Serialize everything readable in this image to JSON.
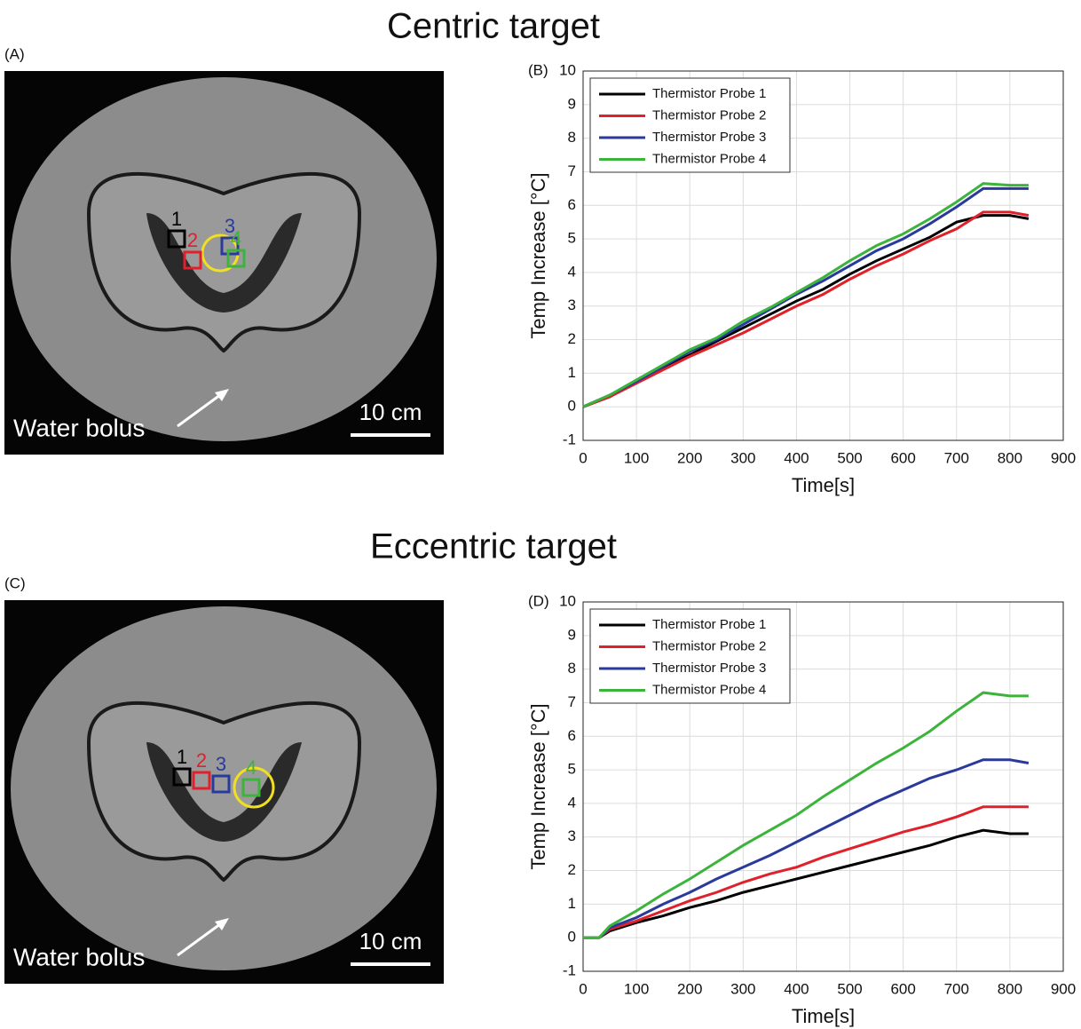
{
  "sections": [
    {
      "title": "Centric target",
      "image": {
        "panel_label": "(A)",
        "annotation": "Water bolus",
        "scale_bar": "10 cm",
        "probe_labels": [
          "1",
          "2",
          "3",
          "4"
        ]
      }
    },
    {
      "title": "Eccentric target",
      "image": {
        "panel_label": "(C)",
        "annotation": "Water bolus",
        "scale_bar": "10 cm",
        "probe_labels": [
          "1",
          "2",
          "3",
          "4"
        ]
      }
    }
  ],
  "chart_data": [
    {
      "type": "line",
      "panel_label": "(B)",
      "x_label": "Time[s]",
      "y_label": "Temp Increase [°C]",
      "x": [
        0,
        50,
        100,
        150,
        200,
        250,
        300,
        350,
        400,
        450,
        500,
        550,
        600,
        650,
        700,
        750,
        800,
        835
      ],
      "series": [
        {
          "name": "Thermistor Probe 1",
          "color": "#000000",
          "values": [
            0,
            0.3,
            0.75,
            1.15,
            1.55,
            1.95,
            2.35,
            2.75,
            3.15,
            3.5,
            3.95,
            4.35,
            4.7,
            5.05,
            5.5,
            5.7,
            5.7,
            5.6
          ]
        },
        {
          "name": "Thermistor Probe 2",
          "color": "#e0202a",
          "values": [
            0,
            0.3,
            0.7,
            1.1,
            1.5,
            1.85,
            2.2,
            2.6,
            3.0,
            3.35,
            3.8,
            4.2,
            4.55,
            4.95,
            5.3,
            5.8,
            5.8,
            5.7
          ]
        },
        {
          "name": "Thermistor Probe 3",
          "color": "#2a3a9c",
          "values": [
            0,
            0.35,
            0.75,
            1.2,
            1.65,
            2.0,
            2.45,
            2.9,
            3.35,
            3.75,
            4.2,
            4.65,
            5.0,
            5.45,
            5.95,
            6.5,
            6.5,
            6.5
          ]
        },
        {
          "name": "Thermistor Probe 4",
          "color": "#3cb43c",
          "values": [
            0,
            0.35,
            0.8,
            1.25,
            1.7,
            2.05,
            2.55,
            2.95,
            3.4,
            3.85,
            4.35,
            4.8,
            5.15,
            5.6,
            6.1,
            6.65,
            6.6,
            6.6
          ]
        }
      ],
      "xlim": [
        0,
        900
      ],
      "xticks": [
        0,
        100,
        200,
        300,
        400,
        500,
        600,
        700,
        800,
        900
      ],
      "ylim": [
        -1,
        10
      ],
      "yticks": [
        -1,
        0,
        1,
        2,
        3,
        4,
        5,
        6,
        7,
        8,
        9,
        10
      ],
      "grid": true,
      "legend": "upper-left"
    },
    {
      "type": "line",
      "panel_label": "(D)",
      "x_label": "Time[s]",
      "y_label": "Temp Increase [°C]",
      "x": [
        0,
        30,
        50,
        100,
        150,
        200,
        250,
        300,
        350,
        400,
        450,
        500,
        550,
        600,
        650,
        700,
        750,
        800,
        835
      ],
      "series": [
        {
          "name": "Thermistor Probe 1",
          "color": "#000000",
          "values": [
            0,
            0,
            0.2,
            0.45,
            0.65,
            0.9,
            1.1,
            1.35,
            1.55,
            1.75,
            1.95,
            2.15,
            2.35,
            2.55,
            2.75,
            3.0,
            3.2,
            3.1,
            3.1
          ]
        },
        {
          "name": "Thermistor Probe 2",
          "color": "#e0202a",
          "values": [
            0,
            0,
            0.25,
            0.5,
            0.8,
            1.1,
            1.35,
            1.65,
            1.9,
            2.1,
            2.4,
            2.65,
            2.9,
            3.15,
            3.35,
            3.6,
            3.9,
            3.9,
            3.9
          ]
        },
        {
          "name": "Thermistor Probe 3",
          "color": "#2a3a9c",
          "values": [
            0,
            0,
            0.3,
            0.6,
            1.0,
            1.35,
            1.75,
            2.1,
            2.45,
            2.85,
            3.25,
            3.65,
            4.05,
            4.4,
            4.75,
            5.0,
            5.3,
            5.3,
            5.2
          ]
        },
        {
          "name": "Thermistor Probe 4",
          "color": "#3cb43c",
          "values": [
            0,
            0,
            0.35,
            0.8,
            1.3,
            1.75,
            2.25,
            2.75,
            3.2,
            3.65,
            4.2,
            4.7,
            5.2,
            5.65,
            6.15,
            6.75,
            7.3,
            7.2,
            7.2
          ]
        }
      ],
      "xlim": [
        0,
        900
      ],
      "xticks": [
        0,
        100,
        200,
        300,
        400,
        500,
        600,
        700,
        800,
        900
      ],
      "ylim": [
        -1,
        10
      ],
      "yticks": [
        -1,
        0,
        1,
        2,
        3,
        4,
        5,
        6,
        7,
        8,
        9,
        10
      ],
      "grid": true,
      "legend": "upper-left"
    }
  ]
}
